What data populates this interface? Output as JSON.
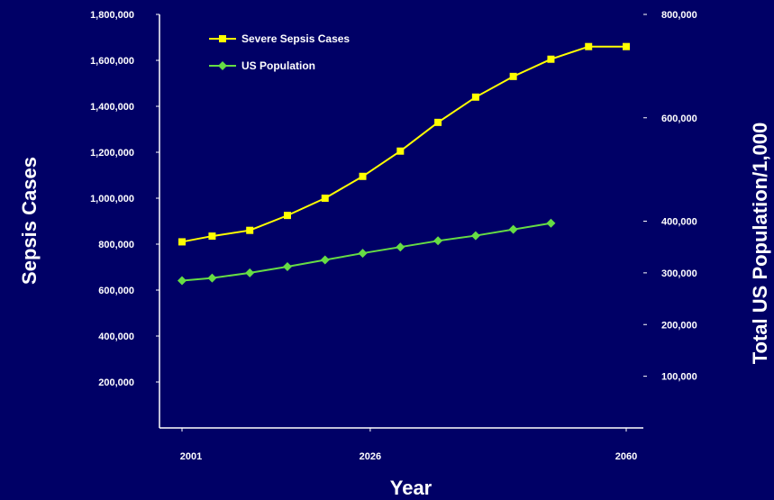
{
  "chart_data": {
    "type": "line",
    "xlabel": "Year",
    "ylabel_left": "Sepsis Cases",
    "ylabel_right": "Total US Population/1,000",
    "x_ticks": [
      "2001",
      "2026",
      "2060"
    ],
    "x_range": [
      2000,
      2062
    ],
    "y_left": {
      "range": [
        0,
        1800000
      ],
      "ticks": [
        200000,
        400000,
        600000,
        800000,
        1000000,
        1200000,
        1400000,
        1600000,
        1800000
      ],
      "tick_labels": [
        "200,000",
        "400,000",
        "600,000",
        "800,000",
        "1,000,000",
        "1,200,000",
        "1,400,000",
        "1,600,000",
        "1,800,000"
      ]
    },
    "y_right": {
      "range": [
        0,
        800000
      ],
      "ticks": [
        100000,
        200000,
        300000,
        400000,
        600000,
        800000
      ],
      "tick_labels": [
        "100,000",
        "200,000",
        "300,000",
        "400,000",
        "600,000",
        "800,000"
      ]
    },
    "legend_position": "top-left",
    "series": [
      {
        "name": "Severe Sepsis Cases",
        "axis": "left",
        "color": "#ffff00",
        "marker": "square",
        "x": [
          2001,
          2005,
          2010,
          2015,
          2020,
          2025,
          2030,
          2035,
          2040,
          2045,
          2050,
          2055,
          2060
        ],
        "values": [
          810000,
          835000,
          860000,
          925000,
          1000000,
          1095000,
          1205000,
          1330000,
          1440000,
          1530000,
          1605000,
          1660000,
          1660000
        ]
      },
      {
        "name": "US Population",
        "axis": "right",
        "color": "#66dd44",
        "marker": "diamond",
        "x": [
          2001,
          2005,
          2010,
          2015,
          2020,
          2025,
          2030,
          2035,
          2040,
          2045,
          2050,
          2055,
          2060
        ],
        "values": [
          285000,
          290000,
          300000,
          312000,
          325000,
          338000,
          350000,
          362000,
          372000,
          384000,
          396000,
          0,
          0
        ]
      }
    ]
  }
}
